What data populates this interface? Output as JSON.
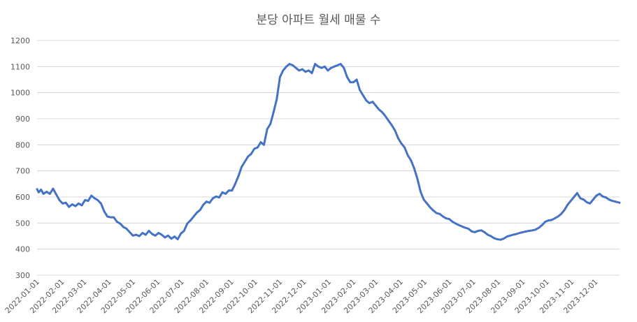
{
  "chart_data": {
    "type": "line",
    "title": "분당 아파트 월세 매물 수",
    "xlabel": "",
    "ylabel": "",
    "ylim": [
      300,
      1200
    ],
    "yticks": [
      300,
      400,
      500,
      600,
      700,
      800,
      900,
      1000,
      1100,
      1200
    ],
    "xlim": [
      "2022-01-01",
      "2023-12-31"
    ],
    "xticks": [
      "2022-01-01",
      "2022-02-01",
      "2022-03-01",
      "2022-04-01",
      "2022-05-01",
      "2022-06-01",
      "2022-07-01",
      "2022-08-01",
      "2022-09-01",
      "2022-10-01",
      "2022-11-01",
      "2022-12-01",
      "2023-01-01",
      "2023-02-01",
      "2023-03-01",
      "2023-04-01",
      "2023-05-01",
      "2023-06-01",
      "2023-07-01",
      "2023-08-01",
      "2023-09-01",
      "2023-10-01",
      "2023-11-01",
      "2023-12-01"
    ],
    "grid": true,
    "legend": "none",
    "color": "#4472c4",
    "series": [
      {
        "points": [
          [
            "2022-01-01",
            630
          ],
          [
            "2022-01-03",
            618
          ],
          [
            "2022-01-06",
            628
          ],
          [
            "2022-01-09",
            612
          ],
          [
            "2022-01-13",
            620
          ],
          [
            "2022-01-17",
            612
          ],
          [
            "2022-01-21",
            632
          ],
          [
            "2022-01-25",
            610
          ],
          [
            "2022-01-29",
            588
          ],
          [
            "2022-02-02",
            575
          ],
          [
            "2022-02-06",
            578
          ],
          [
            "2022-02-10",
            562
          ],
          [
            "2022-02-14",
            572
          ],
          [
            "2022-02-18",
            565
          ],
          [
            "2022-02-22",
            575
          ],
          [
            "2022-02-26",
            568
          ],
          [
            "2022-03-02",
            588
          ],
          [
            "2022-03-06",
            585
          ],
          [
            "2022-03-10",
            605
          ],
          [
            "2022-03-14",
            595
          ],
          [
            "2022-03-18",
            588
          ],
          [
            "2022-03-22",
            575
          ],
          [
            "2022-03-26",
            545
          ],
          [
            "2022-03-30",
            525
          ],
          [
            "2022-04-03",
            522
          ],
          [
            "2022-04-07",
            522
          ],
          [
            "2022-04-11",
            505
          ],
          [
            "2022-04-15",
            498
          ],
          [
            "2022-04-19",
            485
          ],
          [
            "2022-04-23",
            478
          ],
          [
            "2022-04-27",
            465
          ],
          [
            "2022-05-01",
            452
          ],
          [
            "2022-05-05",
            455
          ],
          [
            "2022-05-09",
            450
          ],
          [
            "2022-05-13",
            462
          ],
          [
            "2022-05-17",
            455
          ],
          [
            "2022-05-21",
            470
          ],
          [
            "2022-05-25",
            458
          ],
          [
            "2022-05-29",
            452
          ],
          [
            "2022-06-02",
            462
          ],
          [
            "2022-06-06",
            455
          ],
          [
            "2022-06-10",
            445
          ],
          [
            "2022-06-14",
            452
          ],
          [
            "2022-06-18",
            440
          ],
          [
            "2022-06-22",
            448
          ],
          [
            "2022-06-26",
            438
          ],
          [
            "2022-06-30",
            460
          ],
          [
            "2022-07-04",
            470
          ],
          [
            "2022-07-08",
            498
          ],
          [
            "2022-07-12",
            510
          ],
          [
            "2022-07-16",
            525
          ],
          [
            "2022-07-20",
            540
          ],
          [
            "2022-07-24",
            550
          ],
          [
            "2022-07-28",
            570
          ],
          [
            "2022-08-01",
            582
          ],
          [
            "2022-08-05",
            578
          ],
          [
            "2022-08-09",
            595
          ],
          [
            "2022-08-13",
            602
          ],
          [
            "2022-08-17",
            598
          ],
          [
            "2022-08-21",
            618
          ],
          [
            "2022-08-25",
            612
          ],
          [
            "2022-08-29",
            625
          ],
          [
            "2022-09-02",
            625
          ],
          [
            "2022-09-06",
            650
          ],
          [
            "2022-09-10",
            680
          ],
          [
            "2022-09-14",
            715
          ],
          [
            "2022-09-18",
            735
          ],
          [
            "2022-09-22",
            755
          ],
          [
            "2022-09-26",
            765
          ],
          [
            "2022-09-30",
            785
          ],
          [
            "2022-10-04",
            790
          ],
          [
            "2022-10-08",
            810
          ],
          [
            "2022-10-12",
            800
          ],
          [
            "2022-10-16",
            860
          ],
          [
            "2022-10-20",
            880
          ],
          [
            "2022-10-24",
            925
          ],
          [
            "2022-10-28",
            975
          ],
          [
            "2022-11-01",
            1060
          ],
          [
            "2022-11-05",
            1085
          ],
          [
            "2022-11-09",
            1100
          ],
          [
            "2022-11-13",
            1110
          ],
          [
            "2022-11-17",
            1105
          ],
          [
            "2022-11-21",
            1095
          ],
          [
            "2022-11-25",
            1085
          ],
          [
            "2022-11-29",
            1090
          ],
          [
            "2022-12-03",
            1080
          ],
          [
            "2022-12-07",
            1085
          ],
          [
            "2022-12-11",
            1075
          ],
          [
            "2022-12-15",
            1110
          ],
          [
            "2022-12-19",
            1100
          ],
          [
            "2022-12-23",
            1095
          ],
          [
            "2022-12-27",
            1100
          ],
          [
            "2022-12-31",
            1085
          ],
          [
            "2023-01-04",
            1095
          ],
          [
            "2023-01-08",
            1100
          ],
          [
            "2023-01-12",
            1105
          ],
          [
            "2023-01-16",
            1110
          ],
          [
            "2023-01-20",
            1095
          ],
          [
            "2023-01-24",
            1060
          ],
          [
            "2023-01-28",
            1040
          ],
          [
            "2023-02-01",
            1040
          ],
          [
            "2023-02-05",
            1050
          ],
          [
            "2023-02-09",
            1010
          ],
          [
            "2023-02-13",
            990
          ],
          [
            "2023-02-17",
            970
          ],
          [
            "2023-02-21",
            960
          ],
          [
            "2023-02-25",
            965
          ],
          [
            "2023-03-01",
            950
          ],
          [
            "2023-03-05",
            935
          ],
          [
            "2023-03-09",
            925
          ],
          [
            "2023-03-13",
            910
          ],
          [
            "2023-03-17",
            892
          ],
          [
            "2023-03-21",
            875
          ],
          [
            "2023-03-25",
            855
          ],
          [
            "2023-03-29",
            825
          ],
          [
            "2023-04-02",
            805
          ],
          [
            "2023-04-06",
            790
          ],
          [
            "2023-04-10",
            760
          ],
          [
            "2023-04-14",
            740
          ],
          [
            "2023-04-18",
            710
          ],
          [
            "2023-04-22",
            670
          ],
          [
            "2023-04-26",
            620
          ],
          [
            "2023-04-30",
            590
          ],
          [
            "2023-05-04",
            575
          ],
          [
            "2023-05-08",
            560
          ],
          [
            "2023-05-12",
            548
          ],
          [
            "2023-05-16",
            538
          ],
          [
            "2023-05-20",
            535
          ],
          [
            "2023-05-24",
            525
          ],
          [
            "2023-05-28",
            518
          ],
          [
            "2023-06-01",
            515
          ],
          [
            "2023-06-05",
            505
          ],
          [
            "2023-06-09",
            498
          ],
          [
            "2023-06-13",
            492
          ],
          [
            "2023-06-17",
            487
          ],
          [
            "2023-06-21",
            482
          ],
          [
            "2023-06-25",
            478
          ],
          [
            "2023-06-29",
            468
          ],
          [
            "2023-07-03",
            465
          ],
          [
            "2023-07-07",
            470
          ],
          [
            "2023-07-11",
            472
          ],
          [
            "2023-07-15",
            465
          ],
          [
            "2023-07-19",
            455
          ],
          [
            "2023-07-23",
            450
          ],
          [
            "2023-07-27",
            442
          ],
          [
            "2023-07-31",
            438
          ],
          [
            "2023-08-04",
            436
          ],
          [
            "2023-08-08",
            440
          ],
          [
            "2023-08-12",
            448
          ],
          [
            "2023-08-16",
            452
          ],
          [
            "2023-08-20",
            455
          ],
          [
            "2023-08-24",
            458
          ],
          [
            "2023-08-28",
            462
          ],
          [
            "2023-09-01",
            465
          ],
          [
            "2023-09-05",
            468
          ],
          [
            "2023-09-09",
            470
          ],
          [
            "2023-09-13",
            472
          ],
          [
            "2023-09-17",
            475
          ],
          [
            "2023-09-21",
            482
          ],
          [
            "2023-09-25",
            492
          ],
          [
            "2023-09-29",
            505
          ],
          [
            "2023-10-03",
            510
          ],
          [
            "2023-10-07",
            512
          ],
          [
            "2023-10-11",
            518
          ],
          [
            "2023-10-15",
            525
          ],
          [
            "2023-10-19",
            535
          ],
          [
            "2023-10-23",
            550
          ],
          [
            "2023-10-27",
            570
          ],
          [
            "2023-10-31",
            585
          ],
          [
            "2023-11-04",
            600
          ],
          [
            "2023-11-08",
            615
          ],
          [
            "2023-11-12",
            595
          ],
          [
            "2023-11-16",
            590
          ],
          [
            "2023-11-20",
            580
          ],
          [
            "2023-11-24",
            575
          ],
          [
            "2023-11-28",
            590
          ],
          [
            "2023-12-02",
            605
          ],
          [
            "2023-12-06",
            612
          ],
          [
            "2023-12-10",
            602
          ],
          [
            "2023-12-14",
            598
          ],
          [
            "2023-12-18",
            590
          ],
          [
            "2023-12-22",
            585
          ],
          [
            "2023-12-26",
            582
          ],
          [
            "2023-12-31",
            578
          ]
        ]
      }
    ]
  }
}
